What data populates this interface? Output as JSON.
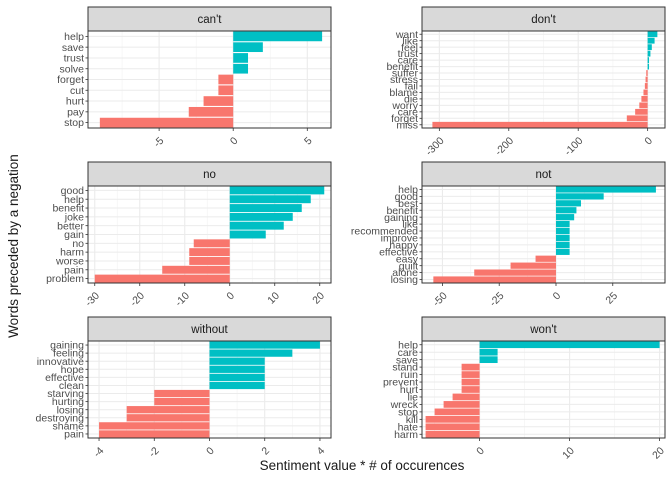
{
  "chart_data": {
    "type": "bar",
    "orientation": "horizontal",
    "facet_layout": "2 columns x 3 rows, free scales",
    "xlabel": "Sentiment value * # of occurences",
    "ylabel": "Words preceded by a negation",
    "grid": true,
    "legend": "none",
    "colors": {
      "positive": "#00BFC4",
      "negative": "#F8766D",
      "strip": "#d9d9d9",
      "grid": "#ebebeb"
    },
    "panels": [
      {
        "title": "can't",
        "xlim": [
          -9.8,
          6.6
        ],
        "xticks": [
          -5,
          0,
          5
        ],
        "bars": [
          {
            "word": "help",
            "value": 6
          },
          {
            "word": "save",
            "value": 2
          },
          {
            "word": "trust",
            "value": 1
          },
          {
            "word": "solve",
            "value": 1
          },
          {
            "word": "forget",
            "value": -1
          },
          {
            "word": "cut",
            "value": -1
          },
          {
            "word": "hurt",
            "value": -2
          },
          {
            "word": "pay",
            "value": -3
          },
          {
            "word": "stop",
            "value": -9
          }
        ]
      },
      {
        "title": "don't",
        "xlim": [
          -325,
          25
        ],
        "xticks": [
          -300,
          -200,
          -100,
          0
        ],
        "bars": [
          {
            "word": "want",
            "value": 14
          },
          {
            "word": "like",
            "value": 10
          },
          {
            "word": "feel",
            "value": 6
          },
          {
            "word": "trust",
            "value": 4
          },
          {
            "word": "care",
            "value": 2
          },
          {
            "word": "benefit",
            "value": 2
          },
          {
            "word": "suffer",
            "value": -2
          },
          {
            "word": "stress",
            "value": -3
          },
          {
            "word": "fail",
            "value": -4
          },
          {
            "word": "blame",
            "value": -6
          },
          {
            "word": "die",
            "value": -9
          },
          {
            "word": "worry",
            "value": -12
          },
          {
            "word": "care",
            "value": -18
          },
          {
            "word": "forget",
            "value": -30
          },
          {
            "word": "miss",
            "value": -310
          }
        ]
      },
      {
        "title": "no",
        "xlim": [
          -31.5,
          22.5
        ],
        "xticks": [
          -30,
          -20,
          -10,
          0,
          10,
          20
        ],
        "bars": [
          {
            "word": "good",
            "value": 21
          },
          {
            "word": "help",
            "value": 18
          },
          {
            "word": "benefit",
            "value": 16
          },
          {
            "word": "joke",
            "value": 14
          },
          {
            "word": "better",
            "value": 12
          },
          {
            "word": "gain",
            "value": 8
          },
          {
            "word": "no",
            "value": -8
          },
          {
            "word": "harm",
            "value": -9
          },
          {
            "word": "worse",
            "value": -9
          },
          {
            "word": "pain",
            "value": -15
          },
          {
            "word": "problem",
            "value": -30
          }
        ]
      },
      {
        "title": "not",
        "xlim": [
          -59,
          48
        ],
        "xticks": [
          -50,
          -25,
          0,
          25
        ],
        "bars": [
          {
            "word": "help",
            "value": 44
          },
          {
            "word": "good",
            "value": 21
          },
          {
            "word": "best",
            "value": 11
          },
          {
            "word": "benefit",
            "value": 9
          },
          {
            "word": "gaining",
            "value": 8
          },
          {
            "word": "like",
            "value": 6
          },
          {
            "word": "recommended",
            "value": 6
          },
          {
            "word": "improve",
            "value": 6
          },
          {
            "word": "happy",
            "value": 6
          },
          {
            "word": "effective",
            "value": 6
          },
          {
            "word": "easy",
            "value": -9
          },
          {
            "word": "guilt",
            "value": -20
          },
          {
            "word": "alone",
            "value": -36
          },
          {
            "word": "losing",
            "value": -54
          }
        ]
      },
      {
        "title": "without",
        "xlim": [
          -4.4,
          4.4
        ],
        "xticks": [
          -4,
          -2,
          0,
          2,
          4
        ],
        "bars": [
          {
            "word": "gaining",
            "value": 4
          },
          {
            "word": "feeling",
            "value": 3
          },
          {
            "word": "innovative",
            "value": 2
          },
          {
            "word": "hope",
            "value": 2
          },
          {
            "word": "effective",
            "value": 2
          },
          {
            "word": "clean",
            "value": 2
          },
          {
            "word": "starving",
            "value": -2
          },
          {
            "word": "hurting",
            "value": -2
          },
          {
            "word": "losing",
            "value": -3
          },
          {
            "word": "destroying",
            "value": -3
          },
          {
            "word": "shame",
            "value": -4
          },
          {
            "word": "pain",
            "value": -4
          }
        ]
      },
      {
        "title": "won't",
        "xlim": [
          -6.4,
          20.6
        ],
        "xticks": [
          0,
          10,
          20
        ],
        "bars": [
          {
            "word": "help",
            "value": 20
          },
          {
            "word": "care",
            "value": 2
          },
          {
            "word": "save",
            "value": 2
          },
          {
            "word": "stand",
            "value": -2
          },
          {
            "word": "ruin",
            "value": -2
          },
          {
            "word": "prevent",
            "value": -2
          },
          {
            "word": "hurt",
            "value": -2
          },
          {
            "word": "lie",
            "value": -3
          },
          {
            "word": "wreck",
            "value": -4
          },
          {
            "word": "stop",
            "value": -5
          },
          {
            "word": "kill",
            "value": -6
          },
          {
            "word": "hate",
            "value": -6
          },
          {
            "word": "harm",
            "value": -6
          }
        ]
      }
    ]
  }
}
